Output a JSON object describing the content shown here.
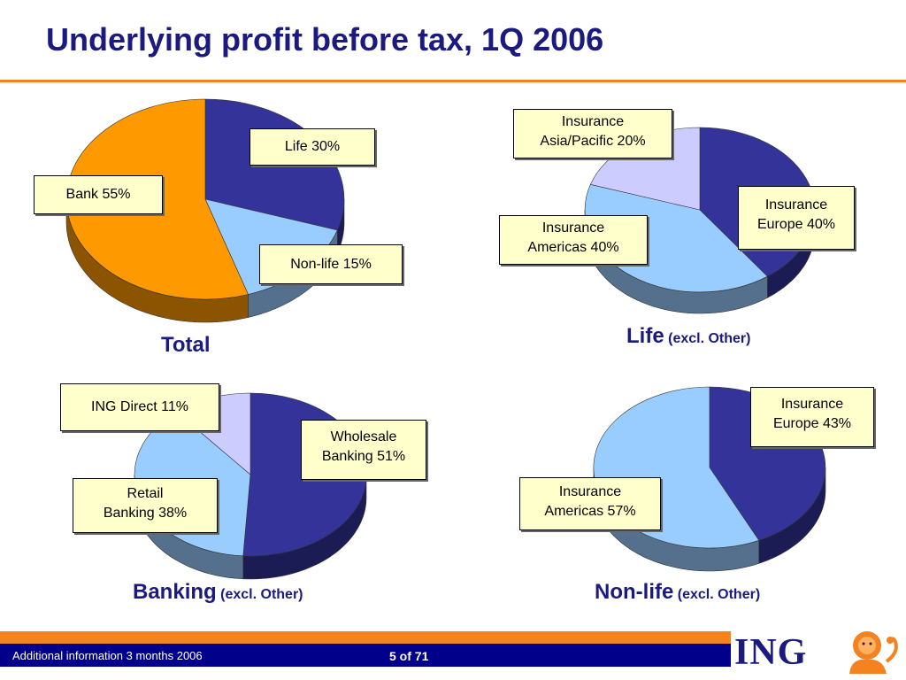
{
  "title": "Underlying profit before tax, 1Q 2006",
  "colors": {
    "title": "#1a1a80",
    "accent_orange": "#f58220",
    "footer_navy": "#00008b",
    "label_bg": "#ffffcc"
  },
  "charts": {
    "total": {
      "title": "Total",
      "subtitle": "",
      "labels": {
        "life": "Life 30%",
        "nonlife": "Non-life 15%",
        "bank": "Bank 55%"
      }
    },
    "life": {
      "title": "Life",
      "subtitle": "(excl. Other)",
      "labels": {
        "asia": "Insurance\nAsia/Pacific 20%",
        "europe": "Insurance\nEurope 40%",
        "americas": "Insurance\nAmericas 40%"
      }
    },
    "banking": {
      "title": "Banking",
      "subtitle": "(excl. Other)",
      "labels": {
        "ingdirect": "ING Direct 11%",
        "wholesale": "Wholesale\nBanking 51%",
        "retail": "Retail\nBanking 38%"
      }
    },
    "nonlife": {
      "title": "Non-life",
      "subtitle": "(excl. Other)",
      "labels": {
        "europe": "Insurance\nEurope 43%",
        "americas": "Insurance\nAmericas 57%"
      }
    }
  },
  "chart_data": [
    {
      "type": "pie",
      "title": "Total",
      "categories": [
        "Life",
        "Non-life",
        "Bank"
      ],
      "values": [
        30,
        15,
        55
      ],
      "colors": [
        "#333399",
        "#99ccff",
        "#ff9900"
      ]
    },
    {
      "type": "pie",
      "title": "Life",
      "categories": [
        "Insurance Europe",
        "Insurance Americas",
        "Insurance Asia/Pacific"
      ],
      "values": [
        40,
        40,
        20
      ],
      "colors": [
        "#333399",
        "#99ccff",
        "#ccccff"
      ]
    },
    {
      "type": "pie",
      "title": "Banking",
      "categories": [
        "Wholesale Banking",
        "Retail Banking",
        "ING Direct"
      ],
      "values": [
        51,
        38,
        11
      ],
      "colors": [
        "#333399",
        "#99ccff",
        "#ccccff"
      ]
    },
    {
      "type": "pie",
      "title": "Non-life",
      "categories": [
        "Insurance Europe",
        "Insurance Americas"
      ],
      "values": [
        43,
        57
      ],
      "colors": [
        "#333399",
        "#99ccff"
      ]
    }
  ],
  "footer": {
    "text": "Additional information 3 months 2006",
    "page": "5 of 71"
  },
  "logo": {
    "text": "ING",
    "icon": "lion-icon"
  }
}
